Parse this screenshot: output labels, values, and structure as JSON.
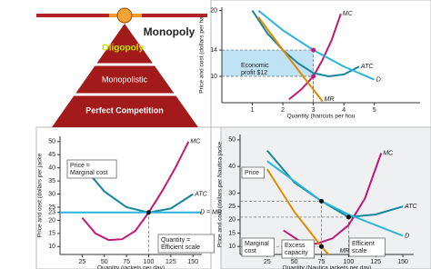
{
  "pyramid": {
    "top_label": "Monopoly",
    "levels": [
      "Oligopoly",
      "Monopolistic",
      "Perfect Competition"
    ]
  },
  "chart_data": [
    {
      "type": "line",
      "x_label": "Quantity (haircuts per hou",
      "y_label": "Price and cost (dollars per ha",
      "xlim": [
        0,
        6.5
      ],
      "ylim": [
        6,
        20.5
      ],
      "xticks": [
        1,
        2,
        3,
        4,
        5
      ],
      "yticks": [
        10,
        14,
        20
      ],
      "series": [
        {
          "name": "MC",
          "color": "#c2187a",
          "x": [
            2.2,
            2.6,
            3,
            3.3,
            3.6,
            3.9
          ],
          "values": [
            6.5,
            8,
            10,
            12.5,
            15.5,
            19.5
          ]
        },
        {
          "name": "ATC",
          "color": "#17869c",
          "x": [
            1,
            1.5,
            2,
            2.5,
            3,
            3.5,
            4,
            4.5
          ],
          "values": [
            20,
            16.5,
            14,
            12,
            10.5,
            10,
            10.3,
            11.5
          ]
        },
        {
          "name": "D",
          "color": "#2ab4dc",
          "x": [
            1.2,
            2,
            3,
            4,
            5
          ],
          "values": [
            20,
            17,
            14,
            11.5,
            9.5
          ]
        },
        {
          "name": "MR",
          "color": "#e08a00",
          "x": [
            1.2,
            2,
            2.5,
            3,
            3.3
          ],
          "values": [
            19,
            14,
            11,
            8,
            6.2
          ]
        }
      ],
      "markers": {
        "x": [
          3,
          3
        ],
        "values": [
          14,
          10
        ]
      },
      "annotations": [
        [
          "Economic",
          "profit $12"
        ]
      ]
    },
    {
      "type": "line",
      "x_label": "Quantity (jackets per day)",
      "y_label": "Price and cost (dollars per jacke",
      "xlim": [
        0,
        160
      ],
      "ylim": [
        7,
        52
      ],
      "xticks": [
        25,
        50,
        75,
        100,
        125,
        150
      ],
      "yticks": [
        10,
        15,
        20,
        23,
        25,
        30,
        35,
        40,
        45,
        50
      ],
      "series": [
        {
          "name": "MC",
          "color": "#c2187a",
          "x": [
            25,
            40,
            55,
            70,
            85,
            100,
            115,
            130,
            145
          ],
          "values": [
            21,
            15,
            12.5,
            12.8,
            16,
            23,
            31,
            40,
            50
          ]
        },
        {
          "name": "ATC",
          "color": "#17869c",
          "x": [
            25,
            50,
            75,
            100,
            125,
            150
          ],
          "values": [
            41,
            31,
            25,
            23,
            24.5,
            30
          ]
        },
        {
          "name": "D = MR",
          "color": "#2ab4dc",
          "x": [
            0,
            160
          ],
          "values": [
            23,
            23
          ]
        }
      ],
      "markers": {
        "x": [
          100
        ],
        "values": [
          23
        ]
      },
      "annotations": [
        [
          "Price =",
          "Marginal cost"
        ],
        [
          "Quantity =",
          "Efficient scale"
        ]
      ]
    },
    {
      "type": "line",
      "x_label": "Quantity (Nautica jackets per day)",
      "y_label": "Price and cost (dollars per Nautica jacke",
      "xlim": [
        0,
        160
      ],
      "ylim": [
        7,
        52
      ],
      "xticks": [
        25,
        50,
        75,
        100,
        125,
        150
      ],
      "yticks": [
        10,
        15,
        20,
        25,
        30,
        40,
        50
      ],
      "series": [
        {
          "name": "MC",
          "color": "#c2187a",
          "x": [
            40,
            55,
            70,
            85,
            100,
            115,
            130
          ],
          "values": [
            16,
            12,
            11,
            13,
            18,
            28,
            45
          ]
        },
        {
          "name": "ATC",
          "color": "#17869c",
          "x": [
            25,
            50,
            75,
            100,
            125,
            150
          ],
          "values": [
            46,
            34,
            27,
            21,
            22,
            25
          ]
        },
        {
          "name": "D",
          "color": "#2ab4dc",
          "x": [
            25,
            75,
            100,
            150
          ],
          "values": [
            42,
            27,
            22,
            14
          ]
        },
        {
          "name": "MR",
          "color": "#e08a00",
          "x": [
            25,
            50,
            75,
            90
          ],
          "values": [
            39,
            23,
            10,
            3
          ]
        }
      ],
      "markers": {
        "x": [
          75,
          75,
          100
        ],
        "values": [
          27,
          10,
          21
        ]
      },
      "annotations": [
        [
          "Price"
        ],
        [
          "Marginal",
          "cost"
        ],
        [
          "Excess",
          "capacity"
        ],
        [
          "Efficient",
          "scale"
        ]
      ]
    }
  ]
}
